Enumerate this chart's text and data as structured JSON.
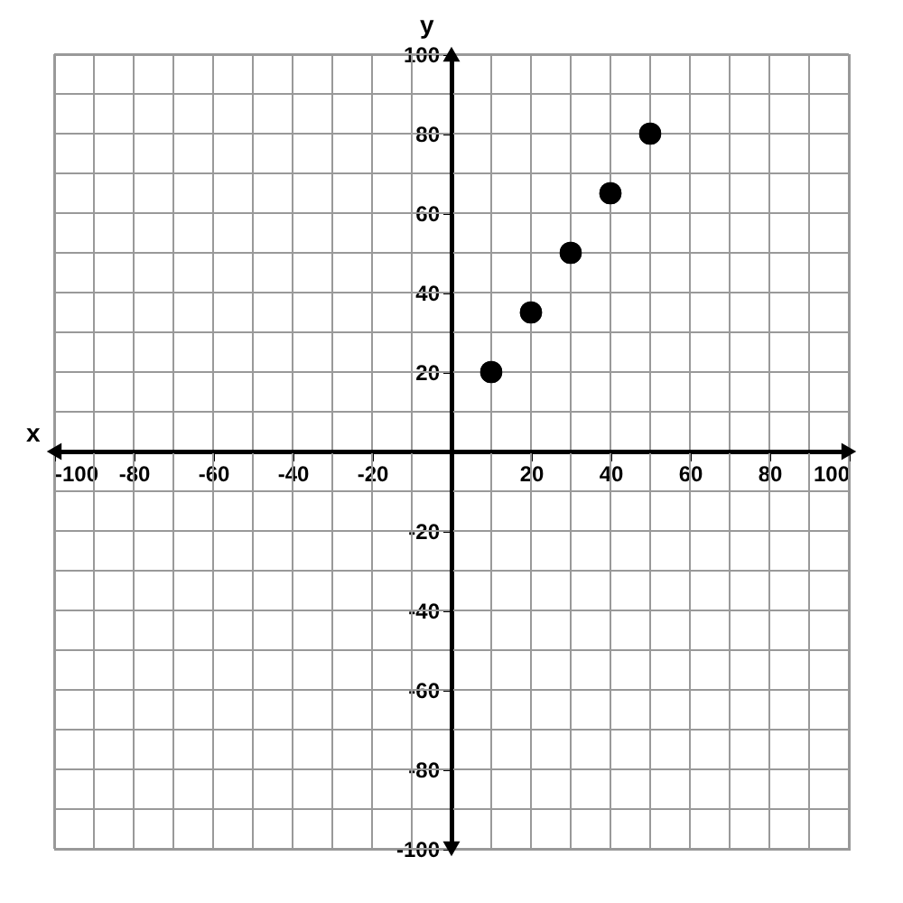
{
  "chart_data": {
    "type": "scatter",
    "xlabel": "x",
    "ylabel": "y",
    "x": [
      10,
      20,
      30,
      40,
      50
    ],
    "values": [
      20,
      35,
      50,
      65,
      80
    ],
    "color": "#000000",
    "marker": "circle",
    "xlim": [
      -100,
      100
    ],
    "ylim": [
      -100,
      100
    ],
    "xticks": [
      -100,
      {
        "value": -90,
        "label": null
      },
      -80,
      {
        "value": -70,
        "label": null
      },
      -60,
      {
        "value": -50,
        "label": null
      },
      -40,
      {
        "value": -30,
        "label": null
      },
      -20,
      {
        "value": -10,
        "label": null
      },
      {
        "value": 0,
        "label": null
      },
      {
        "value": 10,
        "label": null
      },
      20,
      {
        "value": 30,
        "label": null
      },
      40,
      {
        "value": 50,
        "label": null
      },
      60,
      {
        "value": 70,
        "label": null
      },
      80,
      {
        "value": 90,
        "label": null
      },
      100
    ],
    "yticks": [
      -100,
      {
        "value": -90,
        "label": null
      },
      -80,
      {
        "value": -70,
        "label": null
      },
      -60,
      {
        "value": -50,
        "label": null
      },
      -40,
      {
        "value": -30,
        "label": null
      },
      -20,
      {
        "value": -10,
        "label": null
      },
      {
        "value": 0,
        "label": null
      },
      {
        "value": 10,
        "label": null
      },
      20,
      {
        "value": 30,
        "label": null
      },
      40,
      {
        "value": 50,
        "label": null
      },
      60,
      {
        "value": 70,
        "label": null
      },
      80,
      {
        "value": 90,
        "label": null
      },
      100
    ],
    "grid": true
  }
}
